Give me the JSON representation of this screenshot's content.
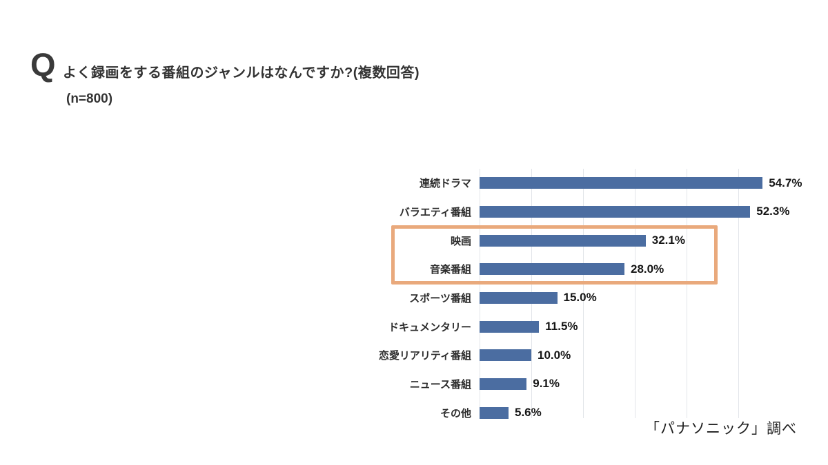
{
  "header": {
    "q_mark": "Q",
    "title": "よく録画をする番組のジャンルはなんですか?(複数回答)",
    "sample": "(n=800)"
  },
  "chart_data": {
    "type": "bar",
    "orientation": "horizontal",
    "title": "よく録画をする番組のジャンルはなんですか?(複数回答)",
    "sample_size": "n=800",
    "categories": [
      "連続ドラマ",
      "バラエティ番組",
      "映画",
      "音楽番組",
      "スポーツ番組",
      "ドキュメンタリー",
      "恋愛リアリティ番組",
      "ニュース番組",
      "その他"
    ],
    "values": [
      54.7,
      52.3,
      32.1,
      28.0,
      15.0,
      11.5,
      10.0,
      9.1,
      5.6
    ],
    "value_labels": [
      "54.7%",
      "52.3%",
      "32.1%",
      "28.0%",
      "15.0%",
      "11.5%",
      "10.0%",
      "9.1%",
      "5.6%"
    ],
    "xlim": [
      0,
      60
    ],
    "gridline_interval": 10,
    "grid": "vertical-light-gray",
    "legend": "none",
    "bar_color": "#4b6da1",
    "highlight_box_color": "#e9a97c",
    "highlighted_categories": [
      "映画",
      "音楽番組"
    ]
  },
  "source": "「パナソニック」調べ"
}
